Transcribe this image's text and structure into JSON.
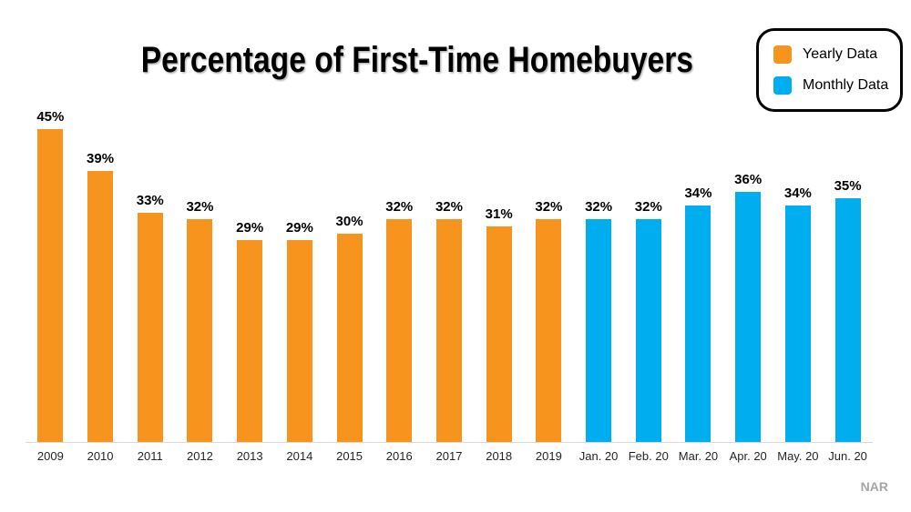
{
  "title": "Percentage of First-Time Homebuyers",
  "source": "NAR",
  "legend": {
    "items": [
      {
        "label": "Yearly Data",
        "color": "#F7941D"
      },
      {
        "label": "Monthly Data",
        "color": "#00AEEF"
      }
    ]
  },
  "colors": {
    "yearly_bar": "#F7941D",
    "monthly_bar": "#00AEEF",
    "axis_line": "#D9D9D9",
    "title_text": "#000000",
    "value_label_text": "#000000",
    "axis_label_text": "#262626",
    "source_text": "#A6A6A6",
    "legend_border": "#000000"
  },
  "chart_data": {
    "type": "bar",
    "title": "Percentage of First-Time Homebuyers",
    "xlabel": "",
    "ylabel": "",
    "ylim": [
      0,
      48
    ],
    "grid": false,
    "legend_position": "top-right",
    "categories": [
      "2009",
      "2010",
      "2011",
      "2012",
      "2013",
      "2014",
      "2015",
      "2016",
      "2017",
      "2018",
      "2019",
      "Jan. 20",
      "Feb. 20",
      "Mar. 20",
      "Apr. 20",
      "May. 20",
      "Jun. 20"
    ],
    "series": [
      {
        "name": "Yearly Data",
        "color": "#F7941D",
        "values": [
          45,
          39,
          33,
          32,
          29,
          29,
          30,
          32,
          32,
          31,
          32,
          null,
          null,
          null,
          null,
          null,
          null
        ]
      },
      {
        "name": "Monthly Data",
        "color": "#00AEEF",
        "values": [
          null,
          null,
          null,
          null,
          null,
          null,
          null,
          null,
          null,
          null,
          null,
          32,
          32,
          34,
          36,
          34,
          35
        ]
      }
    ],
    "bar_value_labels": [
      "45%",
      "39%",
      "33%",
      "32%",
      "29%",
      "29%",
      "30%",
      "32%",
      "32%",
      "31%",
      "32%",
      "32%",
      "32%",
      "34%",
      "36%",
      "34%",
      "35%"
    ]
  }
}
